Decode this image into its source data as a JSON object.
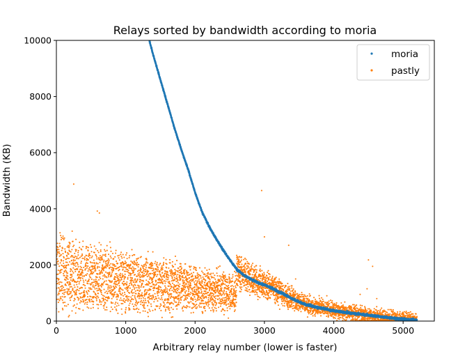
{
  "chart_data": {
    "type": "scatter",
    "title": "Relays sorted by bandwidth according to moria",
    "xlabel": "Arbitrary relay number (lower is faster)",
    "ylabel": "Bandwidth (KB)",
    "xlim": [
      0,
      5450
    ],
    "ylim": [
      0,
      10000
    ],
    "xticks": [
      0,
      1000,
      2000,
      3000,
      4000,
      5000
    ],
    "xtick_labels": [
      "0",
      "1000",
      "2000",
      "3000",
      "4000",
      "5000"
    ],
    "yticks": [
      0,
      2000,
      4000,
      6000,
      8000,
      10000
    ],
    "ytick_labels": [
      "0",
      "2000",
      "4000",
      "6000",
      "8000",
      "10000"
    ],
    "legend_position": "top-right",
    "series": [
      {
        "name": "moria",
        "color": "#1f77b4",
        "n_points": 5200,
        "curve_x": [
          1340,
          1400,
          1500,
          1600,
          1700,
          1800,
          1900,
          2000,
          2100,
          2200,
          2300,
          2400,
          2500,
          2600,
          2700,
          2800,
          2900,
          3000,
          3100,
          3200,
          3300,
          3400,
          3500,
          3600,
          3700,
          3800,
          3900,
          4000,
          4200,
          4400,
          4600,
          4800,
          5000,
          5200
        ],
        "curve_y": [
          10000,
          9450,
          8600,
          7750,
          6900,
          6120,
          5400,
          4580,
          3900,
          3380,
          2950,
          2550,
          2180,
          1850,
          1640,
          1500,
          1380,
          1290,
          1180,
          1050,
          930,
          800,
          680,
          590,
          520,
          470,
          420,
          370,
          300,
          240,
          180,
          120,
          70,
          30
        ]
      },
      {
        "name": "pastly",
        "color": "#ff7f0e",
        "n_points": 5200,
        "outliers_x": [
          250,
          590,
          620,
          2960,
          3000,
          3350,
          3010,
          2580,
          3450,
          4500,
          4560,
          4480,
          4380,
          4620,
          3900
        ],
        "outliers_y": [
          4880,
          3920,
          3850,
          4650,
          3000,
          2700,
          1450,
          1900,
          1500,
          2180,
          1950,
          1150,
          950,
          800,
          900
        ]
      }
    ]
  }
}
